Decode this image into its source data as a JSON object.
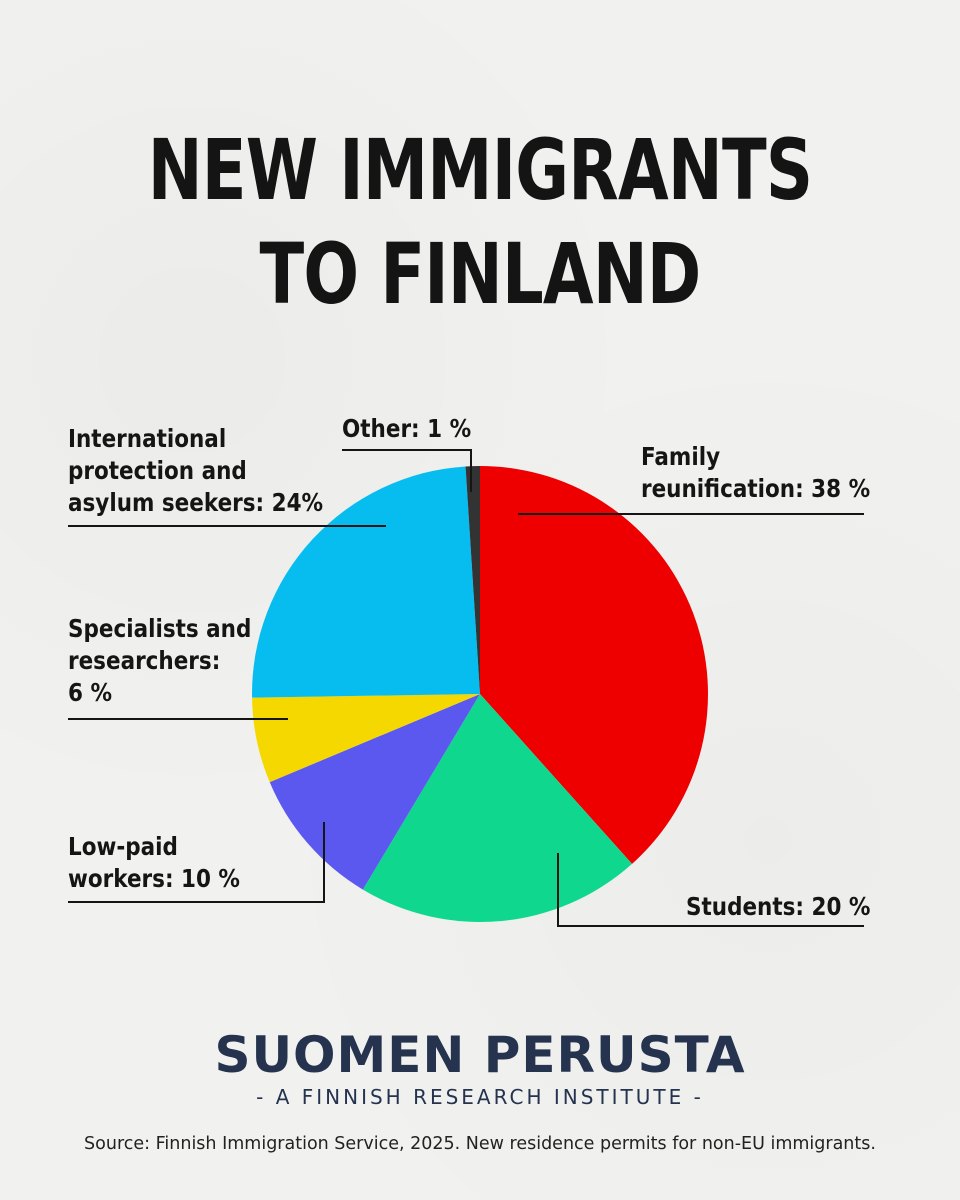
{
  "title_line1": "NEW IMMIGRANTS",
  "title_line2": "TO FINLAND",
  "chart_data": {
    "type": "pie",
    "slices": [
      {
        "label": "Family reunification",
        "value": 38,
        "label_text": "Family\nreunification: 38 %",
        "color": "#ee0000"
      },
      {
        "label": "Students",
        "value": 20,
        "label_text": "Students: 20 %",
        "color": "#0fd88e"
      },
      {
        "label": "Low-paid workers",
        "value": 10,
        "label_text": "Low-paid\nworkers: 10 %",
        "color": "#5b58f0"
      },
      {
        "label": "Specialists and researchers",
        "value": 6,
        "label_text": "Specialists and\nresearchers:\n6 %",
        "color": "#f5d800"
      },
      {
        "label": "International protection and asylum seekers",
        "value": 24,
        "label_text": "International\nprotection and\nasylum seekers: 24%",
        "color": "#07bdf0"
      },
      {
        "label": "Other",
        "value": 1,
        "label_text": "Other: 1 %",
        "color": "#333333"
      }
    ]
  },
  "brand_name": "SUOMEN PERUSTA",
  "brand_tagline": "- A FINNISH RESEARCH INSTITUTE -",
  "source": "Source: Finnish Immigration Service, 2025. New residence permits for non-EU immigrants."
}
